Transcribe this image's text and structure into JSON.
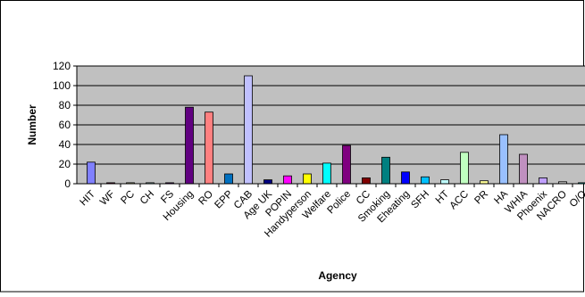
{
  "colors": {
    "plot_bg": "#c0c0c0",
    "grid": "#000000",
    "frame": "#000000"
  },
  "chart_data": {
    "type": "bar",
    "title": "",
    "xlabel": "Agency",
    "ylabel": "Number",
    "ylim": [
      0,
      120
    ],
    "yticks": [
      0,
      20,
      40,
      60,
      80,
      100,
      120
    ],
    "grid": true,
    "categories": [
      "HIT",
      "WF",
      "PC",
      "CH",
      "FS",
      "Housing",
      "RO",
      "EPP",
      "CAB",
      "Age UK",
      "POPIN",
      "Handyperson",
      "Welfare",
      "Police",
      "CC",
      "Smoking",
      "Eheating",
      "SFH",
      "HT",
      "ACC",
      "PR",
      "HA",
      "WHIA",
      "Phoenix",
      "NACRO",
      "O/O"
    ],
    "values": [
      22,
      1,
      1,
      1,
      1,
      78,
      73,
      10,
      110,
      4,
      8,
      10,
      21,
      39,
      6,
      27,
      12,
      7,
      4,
      32,
      3,
      50,
      30,
      6,
      2,
      1
    ],
    "bar_colors": [
      "#8080ff",
      "#800040",
      "#ffffc0",
      "#c0ffff",
      "#600080",
      "#600080",
      "#ff8080",
      "#0070c0",
      "#c0c0ff",
      "#000080",
      "#ff00ff",
      "#ffff00",
      "#00ffff",
      "#800080",
      "#800000",
      "#008080",
      "#0000ff",
      "#00c0ff",
      "#c0ffff",
      "#c0ffc0",
      "#ffff99",
      "#99c0ff",
      "#c090c0",
      "#c0a0ff",
      "#c0c0c0",
      "#00ffff"
    ]
  }
}
